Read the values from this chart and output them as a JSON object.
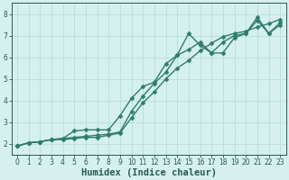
{
  "line1": {
    "x": [
      0,
      1,
      2,
      3,
      4,
      5,
      6,
      7,
      8,
      9,
      10,
      11,
      12,
      13,
      14,
      15,
      16,
      17,
      18,
      19,
      20,
      21,
      22,
      23
    ],
    "y": [
      1.9,
      2.05,
      2.1,
      2.2,
      2.25,
      2.6,
      2.65,
      2.65,
      2.65,
      3.3,
      4.1,
      4.65,
      4.85,
      5.7,
      6.1,
      7.1,
      6.55,
      6.2,
      6.2,
      6.9,
      7.1,
      7.85,
      7.1,
      7.5
    ],
    "color": "#2e7d6e",
    "marker": "D",
    "markersize": 2.5,
    "linewidth": 1.0
  },
  "line2": {
    "x": [
      0,
      1,
      2,
      3,
      4,
      5,
      6,
      7,
      8,
      9,
      10,
      11,
      12,
      13,
      14,
      15,
      16,
      17,
      18,
      19,
      20,
      21,
      22,
      23
    ],
    "y": [
      1.9,
      2.05,
      2.1,
      2.2,
      2.25,
      2.3,
      2.35,
      2.4,
      2.45,
      2.55,
      3.5,
      4.2,
      4.8,
      5.3,
      6.1,
      6.35,
      6.7,
      6.2,
      6.7,
      7.0,
      7.1,
      7.7,
      7.1,
      7.6
    ],
    "color": "#2e7d6e",
    "marker": "D",
    "markersize": 2.5,
    "linewidth": 1.0
  },
  "line3": {
    "x": [
      0,
      1,
      2,
      3,
      4,
      5,
      6,
      7,
      8,
      9,
      10,
      11,
      12,
      13,
      14,
      15,
      16,
      17,
      18,
      19,
      20,
      21,
      22,
      23
    ],
    "y": [
      1.9,
      2.05,
      2.1,
      2.2,
      2.2,
      2.25,
      2.3,
      2.3,
      2.4,
      2.5,
      3.2,
      3.9,
      4.4,
      5.0,
      5.5,
      5.85,
      6.3,
      6.65,
      6.95,
      7.1,
      7.2,
      7.4,
      7.55,
      7.75
    ],
    "color": "#2e7d6e",
    "marker": "D",
    "markersize": 2.5,
    "linewidth": 1.0
  },
  "xlabel": "Humidex (Indice chaleur)",
  "xlim": [
    -0.5,
    23.5
  ],
  "ylim": [
    1.5,
    8.5
  ],
  "yticks": [
    2,
    3,
    4,
    5,
    6,
    7,
    8
  ],
  "xticks": [
    0,
    1,
    2,
    3,
    4,
    5,
    6,
    7,
    8,
    9,
    10,
    11,
    12,
    13,
    14,
    15,
    16,
    17,
    18,
    19,
    20,
    21,
    22,
    23
  ],
  "bg_color": "#d5f0ee",
  "grid_color": "#b0ddd8",
  "line_color": "#2e7d6e",
  "tick_color": "#2a5a50",
  "xlabel_fontsize": 7.5,
  "tick_fontsize": 5.5
}
